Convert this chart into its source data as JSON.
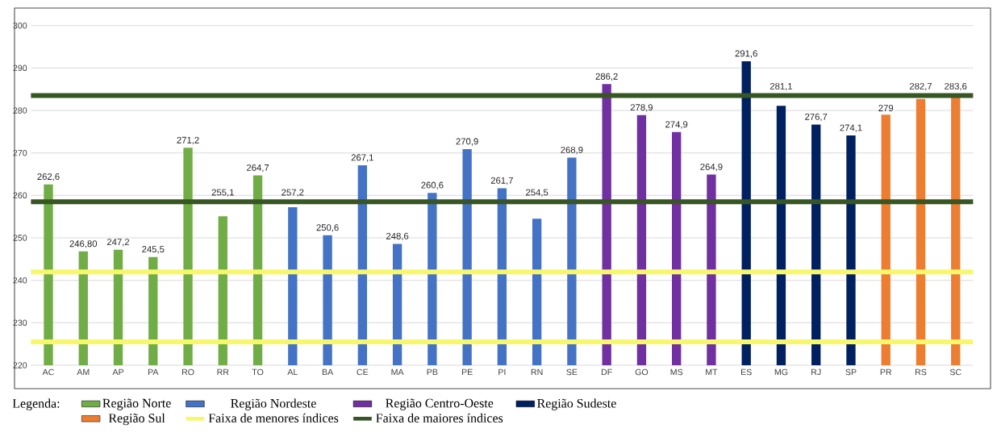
{
  "chart_data": {
    "type": "bar",
    "categories": [
      "AC",
      "AM",
      "AP",
      "PA",
      "RO",
      "RR",
      "TO",
      "AL",
      "BA",
      "CE",
      "MA",
      "PB",
      "PE",
      "PI",
      "RN",
      "SE",
      "DF",
      "GO",
      "MS",
      "MT",
      "ES",
      "MG",
      "RJ",
      "SP",
      "PR",
      "RS",
      "SC"
    ],
    "series": [
      {
        "name": "Região Norte",
        "color": "#70ad47",
        "values": [
          262.6,
          246.8,
          247.2,
          245.5,
          271.2,
          255.1,
          264.7,
          null,
          null,
          null,
          null,
          null,
          null,
          null,
          null,
          null,
          null,
          null,
          null,
          null,
          null,
          null,
          null,
          null,
          null,
          null,
          null
        ],
        "value_labels": [
          "262,6",
          "246,80",
          "247,2",
          "245,5",
          "271,2",
          "255,1",
          "264,7",
          null,
          null,
          null,
          null,
          null,
          null,
          null,
          null,
          null,
          null,
          null,
          null,
          null,
          null,
          null,
          null,
          null,
          null,
          null,
          null
        ]
      },
      {
        "name": "Região Nordeste",
        "color": "#4472c4",
        "values": [
          null,
          null,
          null,
          null,
          null,
          null,
          null,
          257.2,
          250.6,
          267.1,
          248.6,
          260.6,
          270.9,
          261.7,
          254.5,
          268.9,
          null,
          null,
          null,
          null,
          null,
          null,
          null,
          null,
          null,
          null,
          null
        ],
        "value_labels": [
          null,
          null,
          null,
          null,
          null,
          null,
          null,
          "257,2",
          "250,6",
          "267,1",
          "248,6",
          "260,6",
          "270,9",
          "261,7",
          "254,5",
          "268,9",
          null,
          null,
          null,
          null,
          null,
          null,
          null,
          null,
          null,
          null,
          null
        ]
      },
      {
        "name": "Região Centro-Oeste",
        "color": "#7030a0",
        "values": [
          null,
          null,
          null,
          null,
          null,
          null,
          null,
          null,
          null,
          null,
          null,
          null,
          null,
          null,
          null,
          null,
          286.2,
          278.9,
          274.9,
          264.9,
          null,
          null,
          null,
          null,
          null,
          null,
          null
        ],
        "value_labels": [
          null,
          null,
          null,
          null,
          null,
          null,
          null,
          null,
          null,
          null,
          null,
          null,
          null,
          null,
          null,
          null,
          "286,2",
          "278,9",
          "274,9",
          "264,9",
          null,
          null,
          null,
          null,
          null,
          null,
          null
        ]
      },
      {
        "name": "Região Sudeste",
        "color": "#002060",
        "values": [
          null,
          null,
          null,
          null,
          null,
          null,
          null,
          null,
          null,
          null,
          null,
          null,
          null,
          null,
          null,
          null,
          null,
          null,
          null,
          null,
          291.6,
          281.1,
          276.7,
          274.1,
          null,
          null,
          null
        ],
        "value_labels": [
          null,
          null,
          null,
          null,
          null,
          null,
          null,
          null,
          null,
          null,
          null,
          null,
          null,
          null,
          null,
          null,
          null,
          null,
          null,
          null,
          "291,6",
          "281,1",
          "276,7",
          "274,1",
          null,
          null,
          null
        ]
      },
      {
        "name": "Região Sul",
        "color": "#ed7d31",
        "values": [
          null,
          null,
          null,
          null,
          null,
          null,
          null,
          null,
          null,
          null,
          null,
          null,
          null,
          null,
          null,
          null,
          null,
          null,
          null,
          null,
          null,
          null,
          null,
          null,
          279,
          282.7,
          283.6
        ],
        "value_labels": [
          null,
          null,
          null,
          null,
          null,
          null,
          null,
          null,
          null,
          null,
          null,
          null,
          null,
          null,
          null,
          null,
          null,
          null,
          null,
          null,
          null,
          null,
          null,
          null,
          "279",
          "282,7",
          "283,6"
        ]
      }
    ],
    "ref_lines": [
      {
        "axis": "y",
        "value": 242,
        "label": "Faixa de menores índices",
        "color": "#f7f76b"
      },
      {
        "axis": "y",
        "value": 225.5,
        "color": "#f7f76b"
      },
      {
        "axis": "y",
        "value": 258.5,
        "label": "Faixa de maiores índices",
        "color": "#375623"
      },
      {
        "axis": "y",
        "value": 283.5,
        "color": "#375623"
      }
    ],
    "ylim": [
      220,
      300
    ],
    "yticks": [
      220,
      230,
      240,
      250,
      260,
      270,
      280,
      290,
      300
    ],
    "grid": "y",
    "legend": "bottom",
    "legend_title": "Legenda:"
  }
}
